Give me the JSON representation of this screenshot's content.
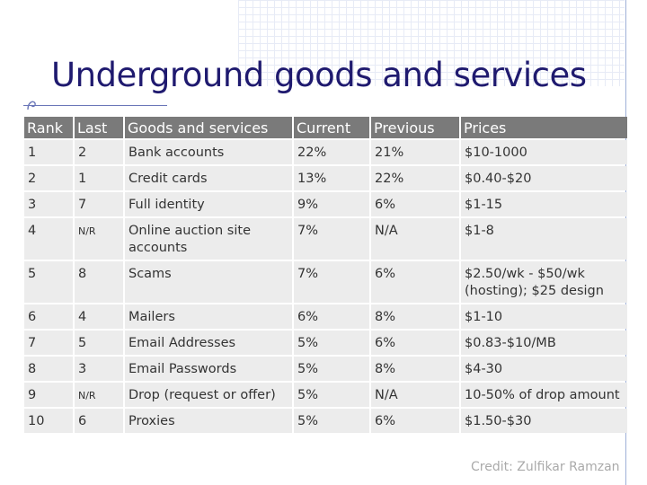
{
  "slide": {
    "title": "Underground goods and services",
    "credit": "Credit: Zulfikar Ramzan"
  },
  "table": {
    "headers": [
      "Rank",
      "Last",
      "Goods and services",
      "Current",
      "Previous",
      "Prices"
    ],
    "rows": [
      [
        "1",
        "2",
        "Bank accounts",
        "22%",
        "21%",
        "$10-1000"
      ],
      [
        "2",
        "1",
        "Credit cards",
        "13%",
        "22%",
        "$0.40-$20"
      ],
      [
        "3",
        "7",
        "Full identity",
        "9%",
        "6%",
        "$1-15"
      ],
      [
        "4",
        "N/R",
        "Online auction site accounts",
        "7%",
        "N/A",
        "$1-8"
      ],
      [
        "5",
        "8",
        "Scams",
        "7%",
        "6%",
        "$2.50/wk - $50/wk (hosting); $25 design"
      ],
      [
        "6",
        "4",
        "Mailers",
        "6%",
        "8%",
        "$1-10"
      ],
      [
        "7",
        "5",
        "Email Addresses",
        "5%",
        "6%",
        "$0.83-$10/MB"
      ],
      [
        "8",
        "3",
        "Email Passwords",
        "5%",
        "8%",
        "$4-30"
      ],
      [
        "9",
        "N/R",
        "Drop (request or offer)",
        "5%",
        "N/A",
        "10-50% of drop amount"
      ],
      [
        "10",
        "6",
        "Proxies",
        "5%",
        "6%",
        "$1.50-$30"
      ]
    ]
  },
  "colors": {
    "title": "#1f1a6f",
    "header_bg": "#7a7a7a",
    "cell_bg": "#ececec"
  }
}
